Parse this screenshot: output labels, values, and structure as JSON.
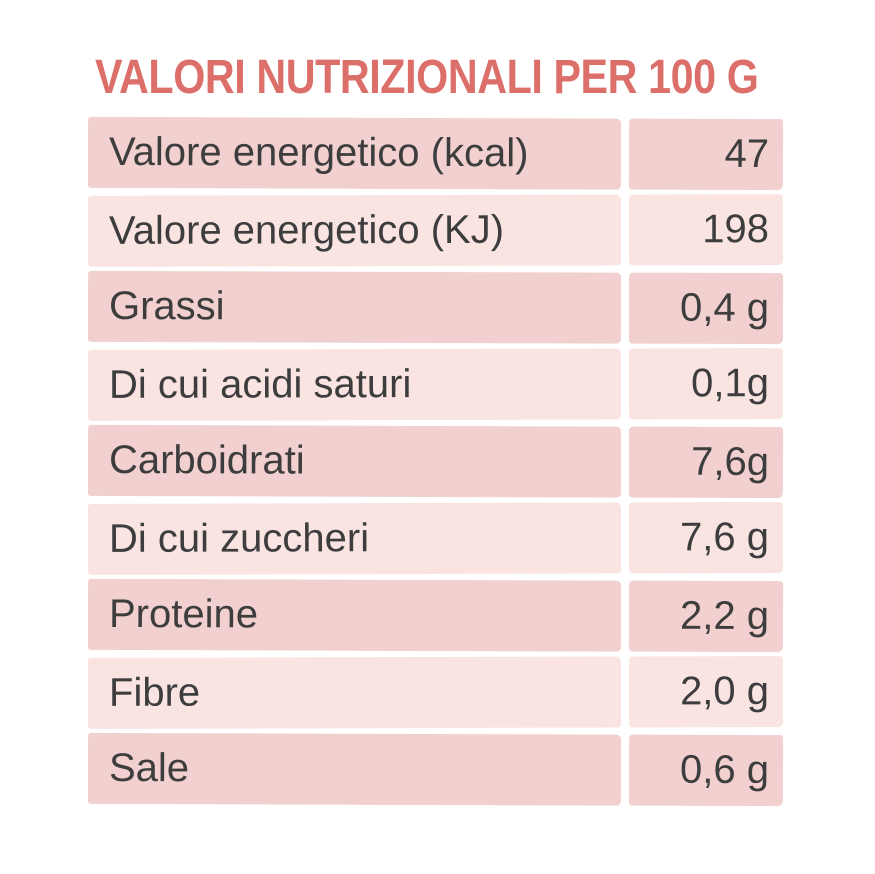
{
  "title": "VALORI NUTRIZIONALI PER 100 G",
  "colors": {
    "title_red": "#dd6f6a",
    "row_dark_pink": "#f2d0d0",
    "row_light_pink": "#f9e4e2",
    "text_dark": "#3d3d3d",
    "background": "#ffffff"
  },
  "table": {
    "rows": [
      {
        "label": "Valore energetico (kcal)",
        "value": "47"
      },
      {
        "label": "Valore energetico (KJ)",
        "value": "198"
      },
      {
        "label": "Grassi",
        "value": "0,4 g"
      },
      {
        "label": "Di cui acidi saturi",
        "value": "0,1g"
      },
      {
        "label": "Carboidrati",
        "value": "7,6g"
      },
      {
        "label": "Di cui zuccheri",
        "value": "7,6 g"
      },
      {
        "label": "Proteine",
        "value": "2,2 g"
      },
      {
        "label": "Fibre",
        "value": "2,0 g"
      },
      {
        "label": "Sale",
        "value": "0,6 g"
      }
    ]
  },
  "chart_data": {
    "type": "table",
    "title": "VALORI NUTRIZIONALI PER 100 G",
    "rows": [
      [
        "Valore energetico (kcal)",
        "47"
      ],
      [
        "Valore energetico (KJ)",
        "198"
      ],
      [
        "Grassi",
        "0,4 g"
      ],
      [
        "Di cui acidi saturi",
        "0,1g"
      ],
      [
        "Carboidrati",
        "7,6g"
      ],
      [
        "Di cui zuccheri",
        "7,6 g"
      ],
      [
        "Proteine",
        "2,2 g"
      ],
      [
        "Fibre",
        "2,0 g"
      ],
      [
        "Sale",
        "0,6 g"
      ]
    ],
    "layout": {
      "value_alignment": "right",
      "row_striping": [
        "dark-pink",
        "light-pink"
      ],
      "grid": "white gutters between rows and columns"
    }
  }
}
